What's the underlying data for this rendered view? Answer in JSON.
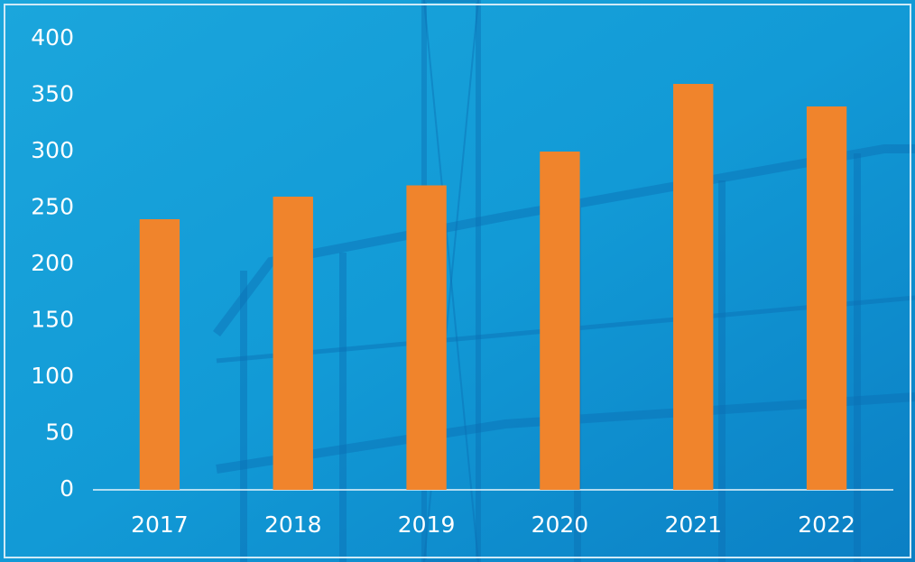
{
  "chart_data": {
    "type": "bar",
    "categories": [
      "2017",
      "2018",
      "2019",
      "2020",
      "2021",
      "2022"
    ],
    "values": [
      240,
      260,
      270,
      300,
      360,
      340
    ],
    "color": "#f0842c",
    "ylim": [
      0,
      400
    ],
    "yticks": [
      0,
      50,
      100,
      150,
      200,
      250,
      300,
      350,
      400
    ],
    "grid": false
  }
}
